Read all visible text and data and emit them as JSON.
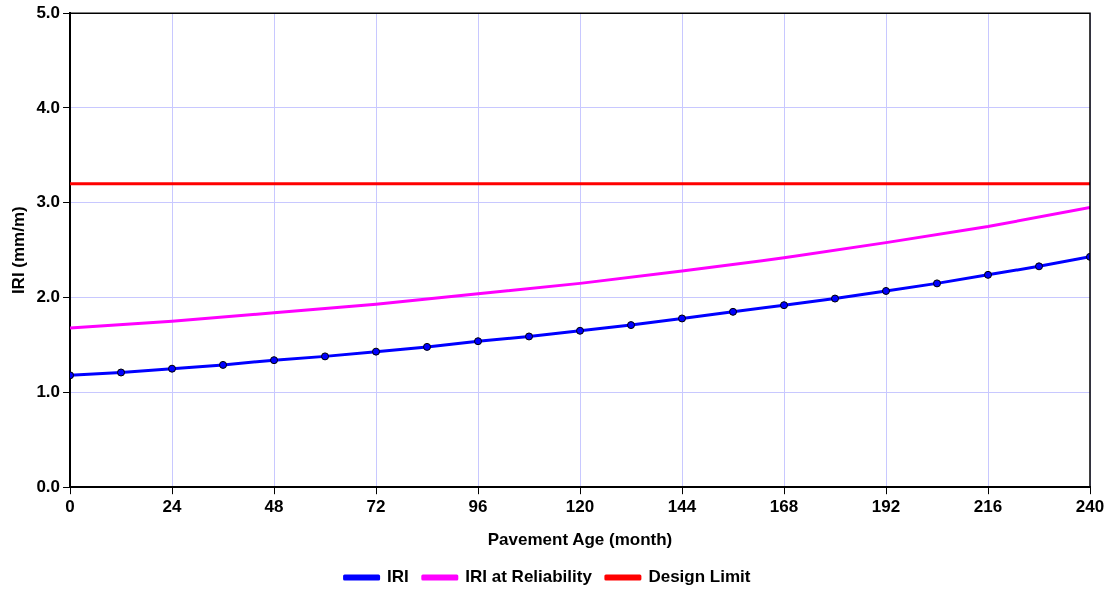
{
  "chart_data": {
    "type": "line",
    "xlabel": "Pavement Age (month)",
    "ylabel": "IRI (mm/m)",
    "xlim": [
      0,
      240
    ],
    "xticks": [
      0,
      24,
      48,
      72,
      96,
      120,
      144,
      168,
      192,
      216,
      240
    ],
    "ylim": [
      0,
      5
    ],
    "yticks": [
      {
        "value": 0,
        "label": "0.0"
      },
      {
        "value": 1,
        "label": "1.0"
      },
      {
        "value": 2,
        "label": "2.0"
      },
      {
        "value": 3,
        "label": "3.0"
      },
      {
        "value": 4,
        "label": "4.0"
      },
      {
        "value": 5,
        "label": "5.0"
      }
    ],
    "grid": true,
    "legend": "bottom",
    "series": [
      {
        "name": "IRI",
        "color": "#0000ff",
        "marker": "circle",
        "x": [
          0,
          12,
          24,
          36,
          48,
          60,
          72,
          84,
          96,
          108,
          120,
          132,
          144,
          156,
          168,
          180,
          192,
          204,
          216,
          228,
          240
        ],
        "values": [
          1.18,
          1.21,
          1.25,
          1.29,
          1.34,
          1.38,
          1.43,
          1.48,
          1.54,
          1.59,
          1.65,
          1.71,
          1.78,
          1.85,
          1.92,
          1.99,
          2.07,
          2.15,
          2.24,
          2.33,
          2.43
        ]
      },
      {
        "name": "IRI at Reliability",
        "color": "#ff00ff",
        "marker": "none",
        "x": [
          0,
          24,
          48,
          72,
          96,
          120,
          144,
          168,
          192,
          216,
          240
        ],
        "values": [
          1.68,
          1.75,
          1.84,
          1.93,
          2.04,
          2.15,
          2.28,
          2.42,
          2.58,
          2.75,
          2.95
        ]
      },
      {
        "name": "Design Limit",
        "color": "#ff0000",
        "marker": "none",
        "x": [
          0,
          240
        ],
        "values": [
          3.2,
          3.2
        ]
      }
    ]
  }
}
